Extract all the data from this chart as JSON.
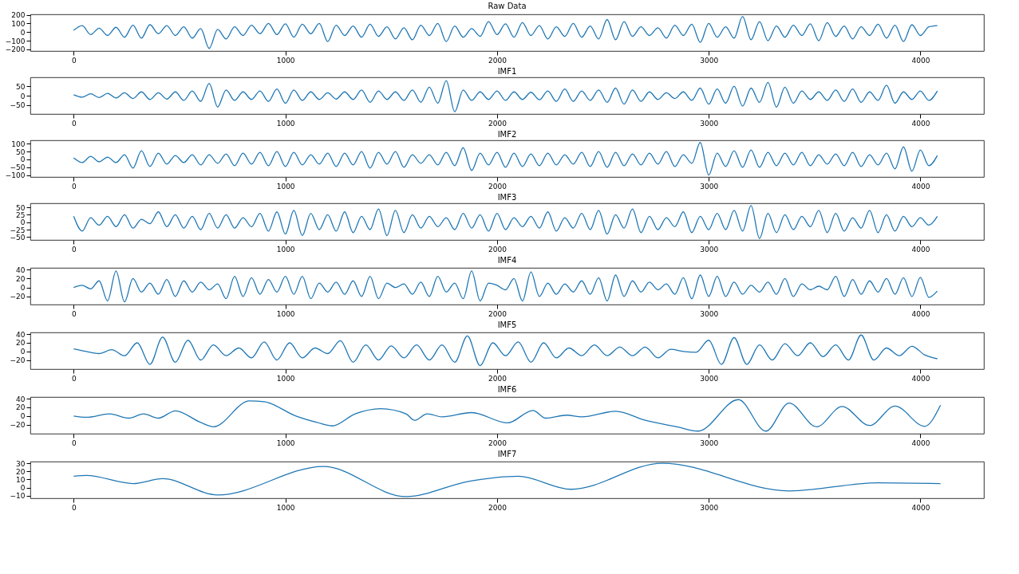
{
  "chart_data": [
    {
      "type": "line",
      "title": "Raw Data",
      "color": "#1f77b4",
      "xlim": [
        -205,
        4300
      ],
      "xticks": [
        0,
        1000,
        2000,
        3000,
        4000
      ],
      "ylim": [
        -220,
        205
      ],
      "yticks": [
        -200,
        -100,
        0,
        100,
        200
      ],
      "x": [
        0,
        40,
        80,
        120,
        160,
        200,
        240,
        280,
        320,
        360,
        400,
        440,
        480,
        520,
        560,
        600,
        640,
        680,
        720,
        760,
        800,
        840,
        880,
        920,
        960,
        1000,
        1040,
        1080,
        1120,
        1160,
        1200,
        1240,
        1280,
        1320,
        1360,
        1400,
        1440,
        1480,
        1520,
        1560,
        1600,
        1640,
        1680,
        1720,
        1760,
        1800,
        1840,
        1880,
        1920,
        1960,
        2000,
        2040,
        2080,
        2120,
        2160,
        2200,
        2240,
        2280,
        2320,
        2360,
        2400,
        2440,
        2480,
        2520,
        2560,
        2600,
        2640,
        2680,
        2720,
        2760,
        2800,
        2840,
        2880,
        2920,
        2960,
        3000,
        3040,
        3080,
        3120,
        3160,
        3200,
        3240,
        3280,
        3320,
        3360,
        3400,
        3440,
        3480,
        3520,
        3560,
        3600,
        3640,
        3680,
        3720,
        3760,
        3800,
        3840,
        3880,
        3920,
        3960,
        4000,
        4040,
        4080
      ],
      "values": [
        20,
        75,
        -30,
        45,
        -40,
        55,
        -60,
        80,
        -70,
        85,
        -20,
        75,
        -40,
        60,
        -70,
        40,
        -190,
        30,
        -80,
        60,
        -40,
        80,
        -20,
        100,
        -30,
        95,
        -60,
        90,
        -20,
        100,
        -110,
        80,
        -40,
        70,
        -60,
        90,
        -50,
        60,
        -80,
        50,
        -90,
        80,
        -40,
        100,
        -110,
        70,
        -60,
        40,
        -50,
        120,
        -30,
        95,
        -60,
        110,
        -40,
        75,
        -80,
        60,
        -50,
        100,
        -60,
        70,
        -80,
        145,
        -90,
        120,
        -50,
        60,
        -40,
        50,
        -70,
        80,
        -40,
        90,
        -120,
        100,
        -60,
        60,
        -70,
        180,
        -90,
        120,
        -100,
        70,
        -60,
        80,
        -40,
        95,
        -100,
        110,
        -50,
        70,
        -80,
        60,
        -40,
        90,
        -70,
        80,
        -110,
        85,
        -40,
        60,
        75
      ]
    },
    {
      "type": "line",
      "title": "IMF1",
      "color": "#1f77b4",
      "xlim": [
        -205,
        4300
      ],
      "xticks": [
        0,
        1000,
        2000,
        3000,
        4000
      ],
      "ylim": [
        -97,
        97
      ],
      "yticks": [
        -50,
        0,
        50
      ],
      "x": [
        0,
        40,
        80,
        120,
        160,
        200,
        240,
        280,
        320,
        360,
        400,
        440,
        480,
        520,
        560,
        600,
        640,
        680,
        720,
        760,
        800,
        840,
        880,
        920,
        960,
        1000,
        1040,
        1080,
        1120,
        1160,
        1200,
        1240,
        1280,
        1320,
        1360,
        1400,
        1440,
        1480,
        1520,
        1560,
        1600,
        1640,
        1680,
        1720,
        1760,
        1800,
        1840,
        1880,
        1920,
        1960,
        2000,
        2040,
        2080,
        2120,
        2160,
        2200,
        2240,
        2280,
        2320,
        2360,
        2400,
        2440,
        2480,
        2520,
        2560,
        2600,
        2640,
        2680,
        2720,
        2760,
        2800,
        2840,
        2880,
        2920,
        2960,
        3000,
        3040,
        3080,
        3120,
        3160,
        3200,
        3240,
        3280,
        3320,
        3360,
        3400,
        3440,
        3480,
        3520,
        3560,
        3600,
        3640,
        3680,
        3720,
        3760,
        3800,
        3840,
        3880,
        3920,
        3960,
        4000,
        4040,
        4080
      ],
      "values": [
        5,
        -8,
        10,
        -10,
        12,
        -12,
        15,
        -15,
        20,
        -20,
        15,
        -18,
        20,
        -25,
        25,
        -30,
        65,
        -60,
        30,
        -25,
        20,
        -20,
        25,
        -30,
        35,
        -40,
        30,
        -25,
        20,
        -20,
        15,
        -18,
        20,
        -20,
        30,
        -35,
        25,
        -20,
        20,
        -25,
        30,
        -35,
        45,
        -40,
        80,
        -85,
        30,
        -25,
        20,
        -20,
        25,
        -25,
        20,
        -20,
        18,
        -22,
        25,
        -30,
        35,
        -30,
        25,
        -25,
        30,
        -35,
        40,
        -45,
        30,
        -30,
        20,
        -20,
        15,
        -15,
        20,
        -25,
        40,
        -45,
        35,
        -40,
        50,
        -55,
        40,
        -35,
        70,
        -60,
        45,
        -40,
        25,
        -20,
        20,
        -25,
        30,
        -30,
        35,
        -35,
        20,
        -25,
        55,
        -40,
        20,
        -20,
        25,
        -25,
        25
      ]
    },
    {
      "type": "line",
      "title": "IMF2",
      "color": "#1f77b4",
      "xlim": [
        -205,
        4300
      ],
      "xticks": [
        0,
        1000,
        2000,
        3000,
        4000
      ],
      "ylim": [
        -112,
        122
      ],
      "yticks": [
        -100,
        -50,
        0,
        50,
        100
      ],
      "x": [
        0,
        40,
        80,
        120,
        160,
        200,
        240,
        280,
        320,
        360,
        400,
        440,
        480,
        520,
        560,
        600,
        640,
        680,
        720,
        760,
        800,
        840,
        880,
        920,
        960,
        1000,
        1040,
        1080,
        1120,
        1160,
        1200,
        1240,
        1280,
        1320,
        1360,
        1400,
        1440,
        1480,
        1520,
        1560,
        1600,
        1640,
        1680,
        1720,
        1760,
        1800,
        1840,
        1880,
        1920,
        1960,
        2000,
        2040,
        2080,
        2120,
        2160,
        2200,
        2240,
        2280,
        2320,
        2360,
        2400,
        2440,
        2480,
        2520,
        2560,
        2600,
        2640,
        2680,
        2720,
        2760,
        2800,
        2840,
        2880,
        2920,
        2960,
        3000,
        3040,
        3080,
        3120,
        3160,
        3200,
        3240,
        3280,
        3320,
        3360,
        3400,
        3440,
        3480,
        3520,
        3560,
        3600,
        3640,
        3680,
        3720,
        3760,
        3800,
        3840,
        3880,
        3920,
        3960,
        4000,
        4040,
        4080
      ],
      "values": [
        10,
        -20,
        20,
        -15,
        15,
        -20,
        30,
        -55,
        55,
        -45,
        40,
        -30,
        25,
        -20,
        30,
        -35,
        30,
        -25,
        35,
        -40,
        40,
        -30,
        45,
        -40,
        50,
        -45,
        45,
        -35,
        30,
        -30,
        40,
        -45,
        40,
        -35,
        50,
        -55,
        45,
        -30,
        50,
        -50,
        30,
        -25,
        30,
        -35,
        45,
        -40,
        75,
        -70,
        40,
        -35,
        45,
        -50,
        40,
        -45,
        35,
        -40,
        40,
        -35,
        30,
        -30,
        45,
        -45,
        50,
        -50,
        45,
        -40,
        35,
        -35,
        40,
        -30,
        50,
        -45,
        30,
        -25,
        108,
        -100,
        40,
        -45,
        55,
        -50,
        60,
        -50,
        45,
        -40,
        40,
        -35,
        45,
        -40,
        30,
        -30,
        35,
        -40,
        45,
        -45,
        30,
        -35,
        40,
        -60,
        80,
        -75,
        60,
        -40,
        25
      ]
    },
    {
      "type": "line",
      "title": "IMF3",
      "color": "#1f77b4",
      "xlim": [
        -205,
        4300
      ],
      "xticks": [
        0,
        1000,
        2000,
        3000,
        4000
      ],
      "ylim": [
        -60,
        64
      ],
      "yticks": [
        -50,
        -25,
        0,
        25,
        50
      ],
      "x": [
        0,
        40,
        80,
        120,
        160,
        200,
        240,
        280,
        320,
        360,
        400,
        440,
        480,
        520,
        560,
        600,
        640,
        680,
        720,
        760,
        800,
        840,
        880,
        920,
        960,
        1000,
        1040,
        1080,
        1120,
        1160,
        1200,
        1240,
        1280,
        1320,
        1360,
        1400,
        1440,
        1480,
        1520,
        1560,
        1600,
        1640,
        1680,
        1720,
        1760,
        1800,
        1840,
        1880,
        1920,
        1960,
        2000,
        2040,
        2080,
        2120,
        2160,
        2200,
        2240,
        2280,
        2320,
        2360,
        2400,
        2440,
        2480,
        2520,
        2560,
        2600,
        2640,
        2680,
        2720,
        2760,
        2800,
        2840,
        2880,
        2920,
        2960,
        3000,
        3040,
        3080,
        3120,
        3160,
        3200,
        3240,
        3280,
        3320,
        3360,
        3400,
        3440,
        3480,
        3520,
        3560,
        3600,
        3640,
        3680,
        3720,
        3760,
        3800,
        3840,
        3880,
        3920,
        3960,
        4000,
        4040,
        4080
      ],
      "values": [
        20,
        -30,
        15,
        -10,
        20,
        -15,
        25,
        -20,
        10,
        -5,
        35,
        -15,
        25,
        -20,
        20,
        -25,
        30,
        -20,
        25,
        -20,
        15,
        -15,
        30,
        -30,
        35,
        -40,
        40,
        -45,
        30,
        -25,
        25,
        -30,
        35,
        -35,
        20,
        -25,
        45,
        -45,
        40,
        -35,
        25,
        -20,
        20,
        -15,
        15,
        -25,
        30,
        -20,
        25,
        -30,
        30,
        -25,
        15,
        -15,
        20,
        -20,
        35,
        -30,
        15,
        -20,
        30,
        -25,
        40,
        -40,
        25,
        -20,
        45,
        -35,
        20,
        -25,
        15,
        -15,
        35,
        -35,
        20,
        -25,
        30,
        -25,
        40,
        -30,
        56,
        -55,
        30,
        -35,
        25,
        -25,
        20,
        -15,
        40,
        -35,
        30,
        -30,
        15,
        -20,
        40,
        -35,
        25,
        -30,
        20,
        -15,
        15,
        -10,
        20
      ]
    },
    {
      "type": "line",
      "title": "IMF4",
      "color": "#1f77b4",
      "xlim": [
        -205,
        4300
      ],
      "xticks": [
        0,
        1000,
        2000,
        3000,
        4000
      ],
      "ylim": [
        -38,
        44
      ],
      "yticks": [
        -20,
        0,
        20,
        40
      ],
      "x": [
        0,
        40,
        80,
        120,
        160,
        200,
        240,
        280,
        320,
        360,
        400,
        440,
        480,
        520,
        560,
        600,
        640,
        680,
        720,
        760,
        800,
        840,
        880,
        920,
        960,
        1000,
        1040,
        1080,
        1120,
        1160,
        1200,
        1240,
        1280,
        1320,
        1360,
        1400,
        1440,
        1480,
        1520,
        1560,
        1600,
        1640,
        1680,
        1720,
        1760,
        1800,
        1840,
        1880,
        1920,
        1960,
        2000,
        2040,
        2080,
        2120,
        2160,
        2200,
        2240,
        2280,
        2320,
        2360,
        2400,
        2440,
        2480,
        2520,
        2560,
        2600,
        2640,
        2680,
        2720,
        2760,
        2800,
        2840,
        2880,
        2920,
        2960,
        3000,
        3040,
        3080,
        3120,
        3160,
        3200,
        3240,
        3280,
        3320,
        3360,
        3400,
        3440,
        3480,
        3520,
        3560,
        3600,
        3640,
        3680,
        3720,
        3760,
        3800,
        3840,
        3880,
        3920,
        3960,
        4000,
        4040,
        4080
      ],
      "values": [
        0,
        5,
        -3,
        15,
        -30,
        37,
        -32,
        20,
        -10,
        10,
        -15,
        18,
        -20,
        15,
        -10,
        12,
        -5,
        8,
        -25,
        25,
        -20,
        22,
        -15,
        18,
        -10,
        25,
        -15,
        25,
        -25,
        10,
        -10,
        12,
        -15,
        15,
        -20,
        25,
        -25,
        10,
        0,
        8,
        -15,
        12,
        -20,
        25,
        -10,
        10,
        -25,
        37,
        -30,
        10,
        5,
        -5,
        20,
        -30,
        35,
        -20,
        10,
        -15,
        8,
        -10,
        15,
        -15,
        22,
        -30,
        28,
        -20,
        15,
        -10,
        12,
        -5,
        8,
        -15,
        22,
        -25,
        28,
        -20,
        25,
        -20,
        12,
        -15,
        5,
        -10,
        12,
        -15,
        20,
        -20,
        8,
        -5,
        3,
        -5,
        25,
        -20,
        18,
        -15,
        15,
        -10,
        20,
        -15,
        22,
        -20,
        23,
        -22,
        -8
      ]
    },
    {
      "type": "line",
      "title": "IMF5",
      "color": "#1f77b4",
      "xlim": [
        -205,
        4300
      ],
      "xticks": [
        0,
        1000,
        2000,
        3000,
        4000
      ],
      "ylim": [
        -41,
        44
      ],
      "yticks": [
        -20,
        0,
        20,
        40
      ],
      "x": [
        0,
        60,
        120,
        180,
        240,
        300,
        360,
        420,
        480,
        540,
        600,
        660,
        720,
        780,
        840,
        900,
        960,
        1020,
        1080,
        1140,
        1200,
        1260,
        1320,
        1380,
        1440,
        1500,
        1560,
        1620,
        1680,
        1740,
        1800,
        1860,
        1920,
        1980,
        2040,
        2100,
        2160,
        2220,
        2280,
        2340,
        2400,
        2460,
        2520,
        2580,
        2640,
        2700,
        2760,
        2820,
        2880,
        2940,
        3000,
        3060,
        3120,
        3180,
        3240,
        3300,
        3360,
        3420,
        3480,
        3540,
        3600,
        3660,
        3720,
        3780,
        3840,
        3900,
        3960,
        4020,
        4080
      ],
      "values": [
        6,
        0,
        -5,
        4,
        -10,
        20,
        -30,
        33,
        -25,
        26,
        -20,
        15,
        -10,
        8,
        -15,
        22,
        -20,
        20,
        -15,
        8,
        -5,
        25,
        -25,
        15,
        -20,
        13,
        -15,
        15,
        -20,
        15,
        -25,
        36,
        -33,
        20,
        -10,
        22,
        -25,
        20,
        -15,
        8,
        -10,
        15,
        -10,
        10,
        -10,
        10,
        -15,
        5,
        0,
        -2,
        26,
        -30,
        32,
        -30,
        15,
        -20,
        18,
        -10,
        20,
        -12,
        15,
        -20,
        38,
        -20,
        8,
        -10,
        12,
        -8,
        -17
      ]
    },
    {
      "type": "line",
      "title": "IMF6",
      "color": "#1f77b4",
      "xlim": [
        -205,
        4300
      ],
      "xticks": [
        0,
        1000,
        2000,
        3000,
        4000
      ],
      "ylim": [
        -41,
        44
      ],
      "yticks": [
        -20,
        0,
        20,
        40
      ],
      "x": [
        0,
        60,
        170,
        260,
        330,
        400,
        480,
        600,
        660,
        830,
        900,
        1050,
        1150,
        1220,
        1330,
        1450,
        1570,
        1610,
        1670,
        1740,
        1880,
        2050,
        2170,
        2230,
        2330,
        2400,
        2560,
        2700,
        2850,
        2950,
        3140,
        3270,
        3380,
        3510,
        3630,
        3760,
        3880,
        4020,
        4095
      ],
      "values": [
        0,
        -3,
        5,
        -5,
        5,
        -5,
        12,
        -15,
        -25,
        35,
        33,
        0,
        -15,
        -23,
        5,
        17,
        5,
        -10,
        5,
        -2,
        8,
        -16,
        13,
        -5,
        2,
        -2,
        11,
        -10,
        -25,
        -35,
        38,
        -35,
        30,
        -25,
        22,
        -22,
        23,
        -24,
        25
      ]
    },
    {
      "type": "line",
      "title": "IMF7",
      "color": "#1f77b4",
      "xlim": [
        -205,
        4300
      ],
      "xticks": [
        0,
        1000,
        2000,
        3000,
        4000
      ],
      "ylim": [
        -13,
        32
      ],
      "yticks": [
        -10,
        0,
        10,
        20,
        30
      ],
      "x": [
        0,
        60,
        280,
        420,
        680,
        1180,
        1570,
        1870,
        2100,
        2350,
        2780,
        3380,
        3800,
        4095
      ],
      "values": [
        14,
        15,
        5,
        11,
        -9,
        26,
        -11,
        8,
        14,
        -2,
        30,
        -4,
        6,
        5
      ]
    }
  ]
}
